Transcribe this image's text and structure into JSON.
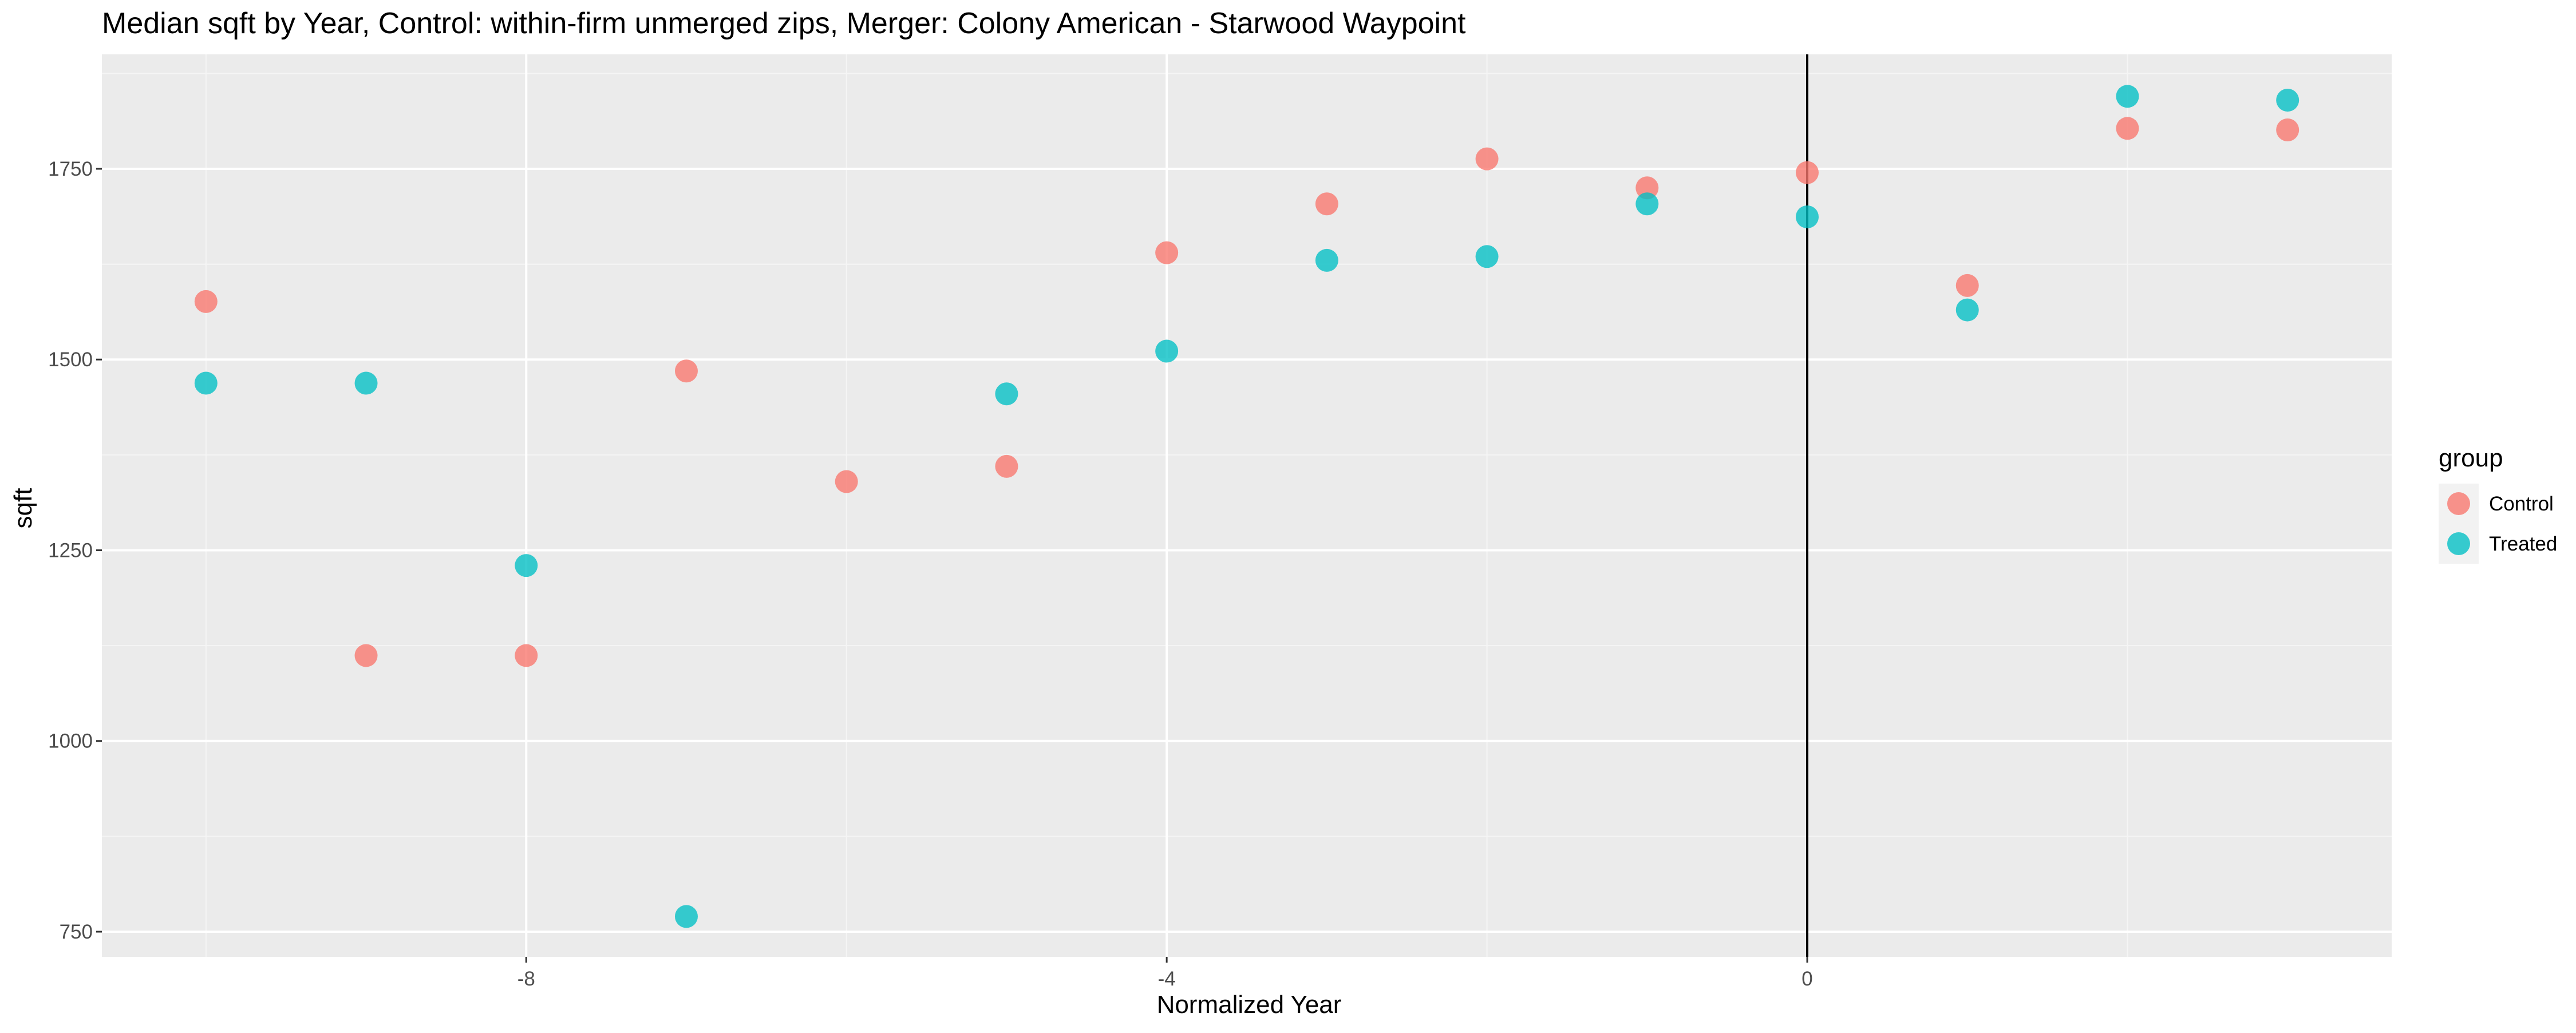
{
  "chart_data": {
    "type": "scatter",
    "title": "Median sqft by Year, Control: within-firm unmerged zips, Merger: Colony American - Starwood Waypoint",
    "xlabel": "Normalized Year",
    "ylabel": "sqft",
    "xlim": [
      -10.65,
      3.65
    ],
    "ylim": [
      717,
      1900
    ],
    "x_ticks": [
      -8,
      -4,
      0
    ],
    "y_ticks": [
      750,
      1000,
      1250,
      1500,
      1750
    ],
    "grid": true,
    "vline": 0,
    "legend": {
      "title": "group",
      "position": "right"
    },
    "colors": {
      "Control": "#F8766D",
      "Treated": "#00BFC4",
      "panel": "#EBEBEB",
      "grid_major": "#FFFFFF",
      "grid_minor": "#F5F5F5",
      "vline": "#000000"
    },
    "series": [
      {
        "name": "Control",
        "x": [
          -10,
          -9,
          -8,
          -7,
          -6,
          -5,
          -4,
          -3,
          -2,
          -1,
          0,
          1,
          2,
          3
        ],
        "y": [
          1576,
          1112,
          1112,
          1485,
          1340,
          1360,
          1640,
          1704,
          1763,
          1725,
          1745,
          1597,
          1803,
          1801
        ]
      },
      {
        "name": "Treated",
        "x": [
          -10,
          -9,
          -8,
          -7,
          -5,
          -4,
          -3,
          -2,
          -1,
          0,
          1,
          2,
          3
        ],
        "y": [
          1469,
          1469,
          1230,
          770,
          1455,
          1511,
          1630,
          1635,
          1704,
          1687,
          1565,
          1845,
          1840
        ]
      }
    ]
  }
}
